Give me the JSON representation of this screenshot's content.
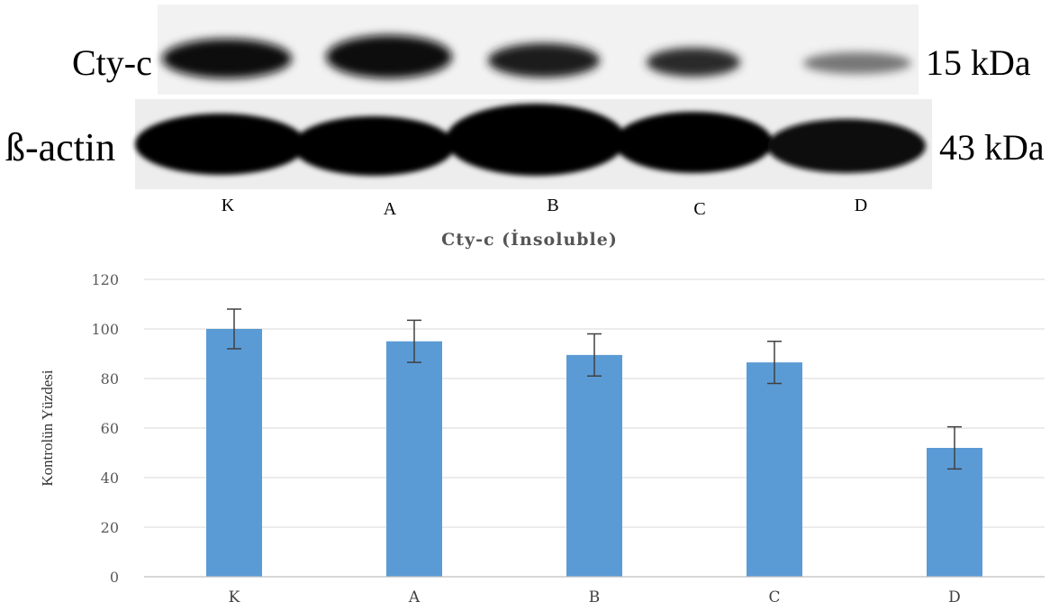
{
  "blot": {
    "rows": [
      {
        "protein": "Cty-c",
        "size": "15 kDa"
      },
      {
        "protein": "ß-actin",
        "size": "43 kDa"
      }
    ],
    "lanes": [
      "K",
      "A",
      "B",
      "C",
      "D"
    ]
  },
  "chart_data": {
    "type": "bar",
    "title": "Cty-c (İnsoluble)",
    "xlabel": "",
    "ylabel": "Kontrolün Yüzdesi",
    "categories": [
      "K",
      "A",
      "B",
      "C",
      "D"
    ],
    "values": [
      100,
      95,
      89.5,
      86.5,
      52
    ],
    "error": [
      8,
      8.5,
      8.5,
      8.5,
      8.5
    ],
    "ylim": [
      0,
      120
    ],
    "yticks": [
      0,
      20,
      40,
      60,
      80,
      100,
      120
    ],
    "grid": true,
    "legend": "none",
    "colors": {
      "bar": "#5b9bd5",
      "error": "#404040",
      "grid": "#d9d9d9"
    }
  }
}
